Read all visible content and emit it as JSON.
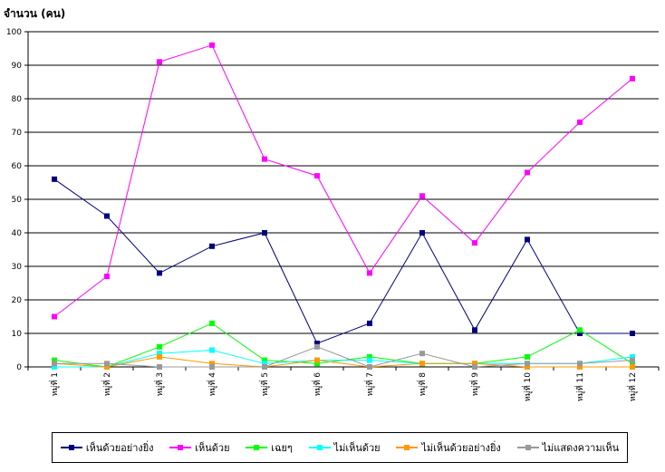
{
  "chart_data": {
    "type": "line",
    "title": "",
    "ylabel": "จำนวน (คน)",
    "xlabel": "",
    "ylim": [
      0,
      100
    ],
    "yticks": [
      0,
      10,
      20,
      30,
      40,
      50,
      60,
      70,
      80,
      90,
      100
    ],
    "grid": true,
    "legend_position": "bottom",
    "categories": [
      "หมู่ที่ 1",
      "หมู่ที่ 2",
      "หมู่ที่ 3",
      "หมู่ที่ 4",
      "หมู่ที่ 5",
      "หมู่ที่ 6",
      "หมู่ที่ 7",
      "หมู่ที่ 8",
      "หมู่ที่ 9",
      "หมู่ที่ 10",
      "หมู่ที่ 11",
      "หมู่ที่ 12"
    ],
    "series": [
      {
        "name": "เห็นด้วยอย่างยิ่ง",
        "color": "#000080",
        "values": [
          56,
          45,
          28,
          36,
          40,
          7,
          13,
          40,
          11,
          38,
          10,
          10
        ]
      },
      {
        "name": "เห็นด้วย",
        "color": "#FF00FF",
        "values": [
          15,
          27,
          91,
          96,
          62,
          57,
          28,
          51,
          37,
          58,
          73,
          86
        ]
      },
      {
        "name": "เฉยๆ",
        "color": "#00FF00",
        "values": [
          2,
          0,
          6,
          13,
          2,
          1,
          3,
          1,
          1,
          3,
          11,
          1
        ]
      },
      {
        "name": "ไม่เห็นด้วย",
        "color": "#00FFFF",
        "values": [
          0,
          0,
          4,
          5,
          1,
          2,
          2,
          1,
          1,
          1,
          1,
          3
        ]
      },
      {
        "name": "ไม่เห็นด้วยอย่างยิ่ง",
        "color": "#FF9900",
        "values": [
          1,
          0,
          3,
          1,
          0,
          2,
          0,
          1,
          1,
          0,
          0,
          0
        ]
      },
      {
        "name": "ไม่แสดงความเห็น",
        "color": "#999999",
        "values": [
          1,
          1,
          0,
          0,
          0,
          6,
          0,
          4,
          0,
          1,
          1,
          2
        ]
      }
    ]
  }
}
